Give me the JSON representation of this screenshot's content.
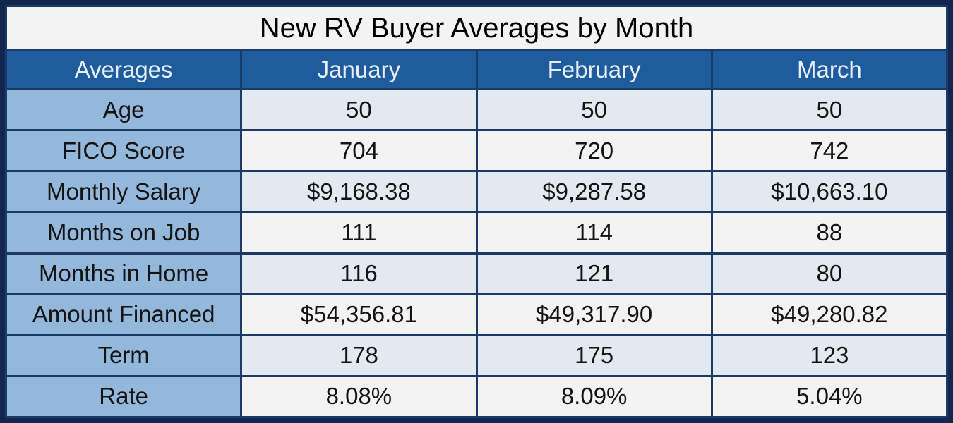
{
  "table": {
    "title": "New RV Buyer Averages by Month",
    "columns": [
      "Averages",
      "January",
      "February",
      "March"
    ],
    "rows": [
      {
        "label": "Age",
        "values": [
          "50",
          "50",
          "50"
        ]
      },
      {
        "label": "FICO Score",
        "values": [
          "704",
          "720",
          "742"
        ]
      },
      {
        "label": "Monthly Salary",
        "values": [
          "$9,168.38",
          "$9,287.58",
          "$10,663.10"
        ]
      },
      {
        "label": "Months on Job",
        "values": [
          "111",
          "114",
          "88"
        ]
      },
      {
        "label": "Months in Home",
        "values": [
          "116",
          "121",
          "80"
        ]
      },
      {
        "label": "Amount Financed",
        "values": [
          "$54,356.81",
          "$49,317.90",
          "$49,280.82"
        ]
      },
      {
        "label": "Term",
        "values": [
          "178",
          "175",
          "123"
        ]
      },
      {
        "label": "Rate",
        "values": [
          "8.08%",
          "8.09%",
          "5.04%"
        ]
      }
    ],
    "colors": {
      "border": "#122650",
      "grid": "#1B3A66",
      "header_bg": "#1F5C9E",
      "header_text": "#E9EFF8",
      "label_bg": "#94B7DC",
      "row_odd_bg": "#E3E9F1",
      "row_even_bg": "#F3F3F3",
      "title_bg": "#F3F3F3",
      "title_text": "#000000"
    }
  },
  "chart_data": {
    "type": "table",
    "title": "New RV Buyer Averages by Month",
    "columns": [
      "Averages",
      "January",
      "February",
      "March"
    ],
    "rows": [
      [
        "Age",
        50,
        50,
        50
      ],
      [
        "FICO Score",
        704,
        720,
        742
      ],
      [
        "Monthly Salary",
        "$9,168.38",
        "$9,287.58",
        "$10,663.10"
      ],
      [
        "Months on Job",
        111,
        114,
        88
      ],
      [
        "Months in Home",
        116,
        121,
        80
      ],
      [
        "Amount Financed",
        "$54,356.81",
        "$49,317.90",
        "$49,280.82"
      ],
      [
        "Term",
        178,
        175,
        123
      ],
      [
        "Rate",
        "8.08%",
        "8.09%",
        "5.04%"
      ]
    ]
  }
}
